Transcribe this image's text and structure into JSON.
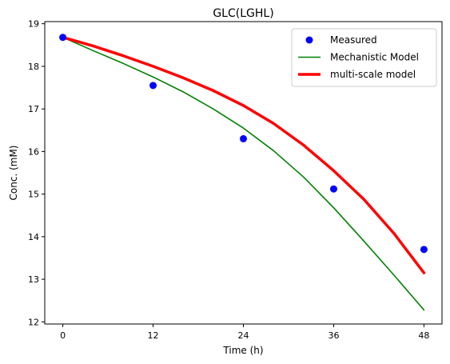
{
  "chart_data": {
    "type": "line",
    "title": "GLC(LGHL)",
    "xlabel": "Time (h)",
    "ylabel": "Conc. (mM)",
    "xlim": [
      -2.4,
      50.4
    ],
    "ylim": [
      11.95,
      19.05
    ],
    "xticks": [
      0,
      12,
      24,
      36,
      48
    ],
    "yticks": [
      12,
      13,
      14,
      15,
      16,
      17,
      18,
      19
    ],
    "legend_position": "top-right",
    "series": [
      {
        "name": "Measured",
        "kind": "scatter",
        "color": "#0000ff",
        "x": [
          0,
          12,
          24,
          36,
          48
        ],
        "y": [
          18.68,
          17.55,
          16.3,
          15.12,
          13.7
        ]
      },
      {
        "name": "Mechanistic Model",
        "kind": "line",
        "color": "#008000",
        "x": [
          0,
          4,
          8,
          12,
          16,
          20,
          24,
          28,
          32,
          36,
          40,
          44,
          48
        ],
        "y": [
          18.68,
          18.37,
          18.07,
          17.75,
          17.4,
          17.0,
          16.55,
          16.02,
          15.4,
          14.68,
          13.9,
          13.1,
          12.28
        ]
      },
      {
        "name": "multi-scale model",
        "kind": "line",
        "color": "#ff0000",
        "x": [
          0,
          4,
          8,
          12,
          16,
          20,
          24,
          28,
          32,
          36,
          40,
          44,
          48
        ],
        "y": [
          18.68,
          18.48,
          18.25,
          18.0,
          17.73,
          17.43,
          17.08,
          16.66,
          16.15,
          15.55,
          14.88,
          14.08,
          13.15
        ]
      }
    ]
  }
}
